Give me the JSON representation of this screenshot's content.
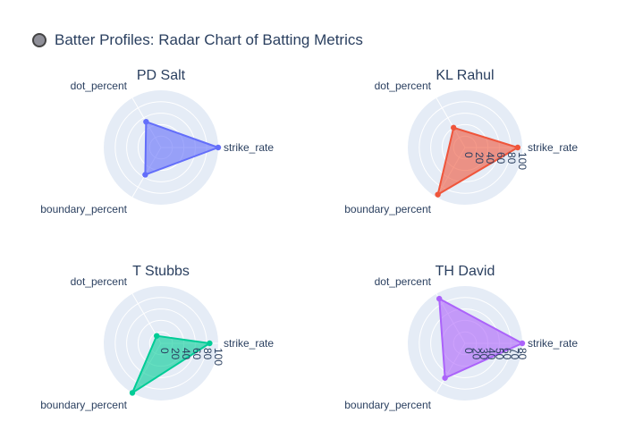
{
  "title": "Batter Profiles: Radar Chart of Batting Metrics",
  "chart_data": [
    {
      "type": "radar",
      "name": "PD Salt",
      "color": "#636efa",
      "axes": [
        "strike_rate",
        "dot_percent",
        "boundary_percent"
      ],
      "values": [
        100,
        52,
        55
      ],
      "range": [
        0,
        100
      ],
      "ticks": [],
      "tick_labels_visible": false
    },
    {
      "type": "radar",
      "name": "KL Rahul",
      "color": "#ef553b",
      "axes": [
        "strike_rate",
        "dot_percent",
        "boundary_percent"
      ],
      "values": [
        92,
        40,
        95
      ],
      "range": [
        0,
        100
      ],
      "ticks": [
        "0",
        "20",
        "40",
        "60",
        "80",
        "100"
      ],
      "tick_labels_visible": true
    },
    {
      "type": "radar",
      "name": "T Stubbs",
      "color": "#00cc96",
      "axes": [
        "strike_rate",
        "dot_percent",
        "boundary_percent"
      ],
      "values": [
        85,
        15,
        100
      ],
      "range": [
        0,
        100
      ],
      "ticks": [
        "0",
        "20",
        "40",
        "60",
        "80",
        "100"
      ],
      "tick_labels_visible": true
    },
    {
      "type": "radar",
      "name": "TH David",
      "color": "#ab63fa",
      "axes": [
        "strike_rate",
        "dot_percent",
        "boundary_percent"
      ],
      "values": [
        100,
        90,
        70
      ],
      "range": [
        0,
        100
      ],
      "ticks": [
        "0",
        "20",
        "30",
        "40",
        "50",
        "60",
        "70",
        "80"
      ],
      "tick_labels_visible": true
    }
  ]
}
